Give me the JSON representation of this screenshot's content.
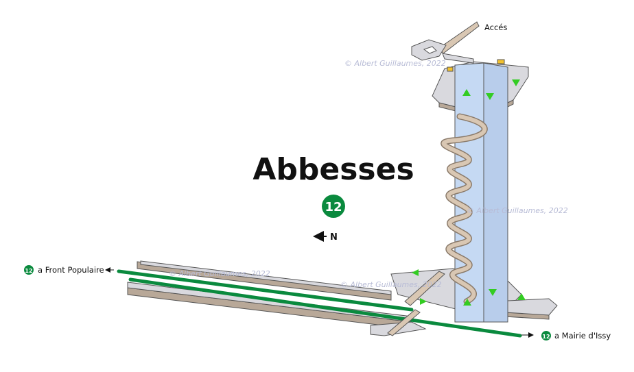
{
  "title": "Abbesses",
  "line_number": "12",
  "line_color": "#0a8a3e",
  "north_label": "N",
  "access_label": "Accés",
  "direction_west": {
    "badge": "12",
    "text": "a Front Populaire"
  },
  "direction_east": {
    "badge": "12",
    "text": "a Mairie d'Issy"
  },
  "watermark": "© Albert Guillaumes, 2022",
  "colors": {
    "platform": "#d9d9de",
    "stair": "#d9c7b3",
    "shaft": "#c5d9f3",
    "arrow": "#33cc22"
  }
}
